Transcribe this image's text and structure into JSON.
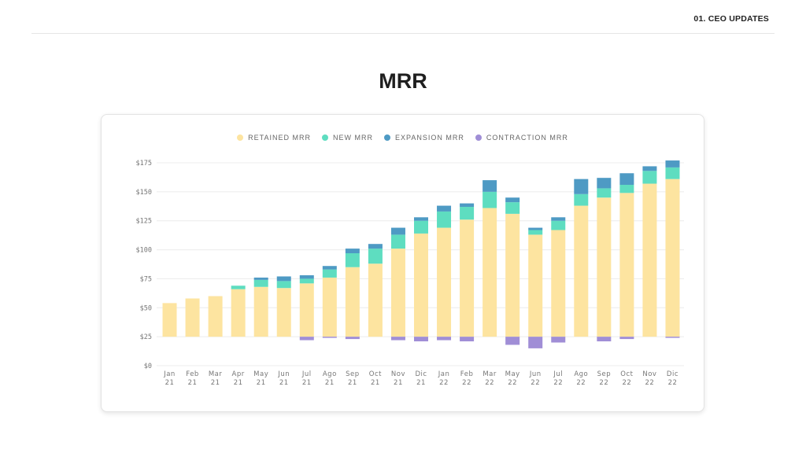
{
  "header": {
    "section_label": "01. CEO UPDATES"
  },
  "page": {
    "title": "MRR"
  },
  "colors": {
    "retained": "#FDE4A0",
    "new": "#5EDDC0",
    "expansion": "#4E9AC4",
    "contraction": "#A08ED6",
    "grid": "#ececec"
  },
  "chart_data": {
    "type": "bar",
    "stacked": true,
    "title": "",
    "xlabel": "",
    "ylabel": "",
    "ylim": [
      0,
      175
    ],
    "baseline": 25,
    "y_ticks": [
      "$0",
      "$25",
      "$50",
      "$75",
      "$100",
      "$125",
      "$150",
      "$175"
    ],
    "categories": [
      [
        "Jan",
        "21"
      ],
      [
        "Feb",
        "21"
      ],
      [
        "Mar",
        "21"
      ],
      [
        "Apr",
        "21"
      ],
      [
        "May",
        "21"
      ],
      [
        "Jun",
        "21"
      ],
      [
        "Jul",
        "21"
      ],
      [
        "Ago",
        "21"
      ],
      [
        "Sep",
        "21"
      ],
      [
        "Oct",
        "21"
      ],
      [
        "Nov",
        "21"
      ],
      [
        "Dic",
        "21"
      ],
      [
        "Jan",
        "22"
      ],
      [
        "Feb",
        "22"
      ],
      [
        "Mar",
        "22"
      ],
      [
        "May",
        "22"
      ],
      [
        "Jun",
        "22"
      ],
      [
        "Jul",
        "22"
      ],
      [
        "Ago",
        "22"
      ],
      [
        "Sep",
        "22"
      ],
      [
        "Oct",
        "22"
      ],
      [
        "Nov",
        "22"
      ],
      [
        "Dic",
        "22"
      ]
    ],
    "legend_position": "top-center",
    "series": [
      {
        "name": "RETAINED MRR",
        "key": "retained",
        "values": [
          29,
          33,
          35,
          41,
          43,
          42,
          46,
          51,
          60,
          63,
          76,
          89,
          94,
          101,
          111,
          106,
          88,
          92,
          113,
          120,
          124,
          132,
          136
        ]
      },
      {
        "name": "NEW MRR",
        "key": "new",
        "values": [
          0,
          0,
          0,
          3,
          6,
          6,
          4,
          7,
          12,
          13,
          12,
          11,
          14,
          11,
          14,
          10,
          4,
          8,
          10,
          8,
          7,
          11,
          10
        ]
      },
      {
        "name": "EXPANSION MRR",
        "key": "expansion",
        "values": [
          0,
          0,
          0,
          0,
          2,
          4,
          3,
          3,
          4,
          4,
          6,
          3,
          5,
          3,
          10,
          4,
          2,
          3,
          13,
          9,
          10,
          4,
          6
        ]
      },
      {
        "name": "CONTRACTION MRR",
        "key": "contraction",
        "values": [
          0,
          0,
          0,
          0,
          0,
          0,
          -3,
          -1,
          -2,
          0,
          -3,
          -4,
          -3,
          -4,
          0,
          -7,
          -10,
          -5,
          0,
          -4,
          -2,
          0,
          -1
        ]
      }
    ]
  }
}
